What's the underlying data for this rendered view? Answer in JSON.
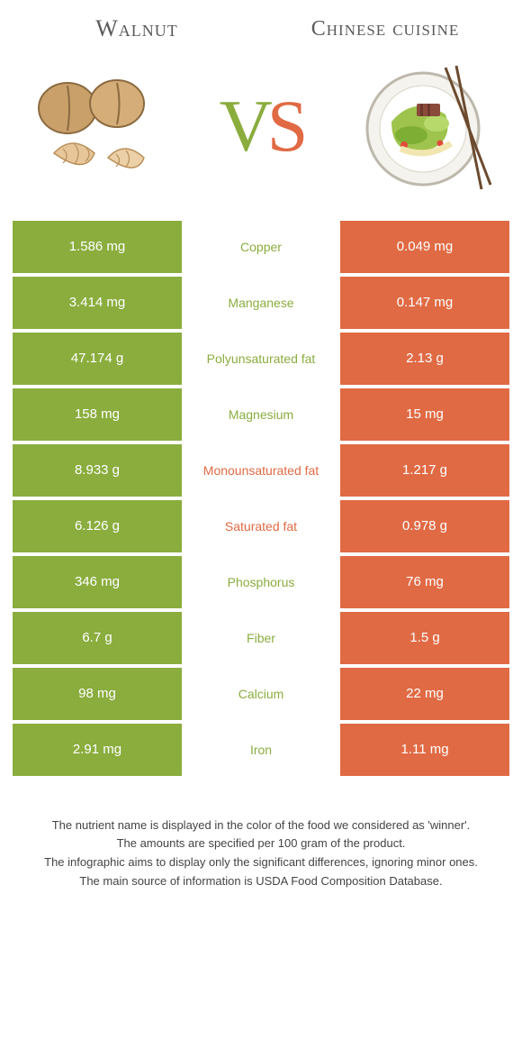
{
  "colors": {
    "left": "#8aad3e",
    "right": "#e06a44",
    "title": "#5a5a5a",
    "footer_text": "#444444",
    "background": "#ffffff"
  },
  "typography": {
    "title_fontsize": 26,
    "vs_fontsize": 82,
    "cell_value_fontsize": 15,
    "nutrient_label_fontsize": 14,
    "footer_fontsize": 13
  },
  "header": {
    "left_title": "Walnut",
    "right_title": "Chinese cuisine",
    "vs_v": "V",
    "vs_s": "S"
  },
  "nutrients": [
    {
      "name": "Copper",
      "left": "1.586 mg",
      "right": "0.049 mg",
      "winner": "left"
    },
    {
      "name": "Manganese",
      "left": "3.414 mg",
      "right": "0.147 mg",
      "winner": "left"
    },
    {
      "name": "Polyunsaturated fat",
      "left": "47.174 g",
      "right": "2.13 g",
      "winner": "left"
    },
    {
      "name": "Magnesium",
      "left": "158 mg",
      "right": "15 mg",
      "winner": "left"
    },
    {
      "name": "Monounsaturated fat",
      "left": "8.933 g",
      "right": "1.217 g",
      "winner": "right"
    },
    {
      "name": "Saturated fat",
      "left": "6.126 g",
      "right": "0.978 g",
      "winner": "right"
    },
    {
      "name": "Phosphorus",
      "left": "346 mg",
      "right": "76 mg",
      "winner": "left"
    },
    {
      "name": "Fiber",
      "left": "6.7 g",
      "right": "1.5 g",
      "winner": "left"
    },
    {
      "name": "Calcium",
      "left": "98 mg",
      "right": "22 mg",
      "winner": "left"
    },
    {
      "name": "Iron",
      "left": "2.91 mg",
      "right": "1.11 mg",
      "winner": "left"
    }
  ],
  "footer": {
    "line1": "The nutrient name is displayed in the color of the food we considered as 'winner'.",
    "line2": "The amounts are specified per 100 gram of the product.",
    "line3": "The infographic aims to display only the significant differences, ignoring minor ones.",
    "line4": "The main source of information is USDA Food Composition Database."
  }
}
